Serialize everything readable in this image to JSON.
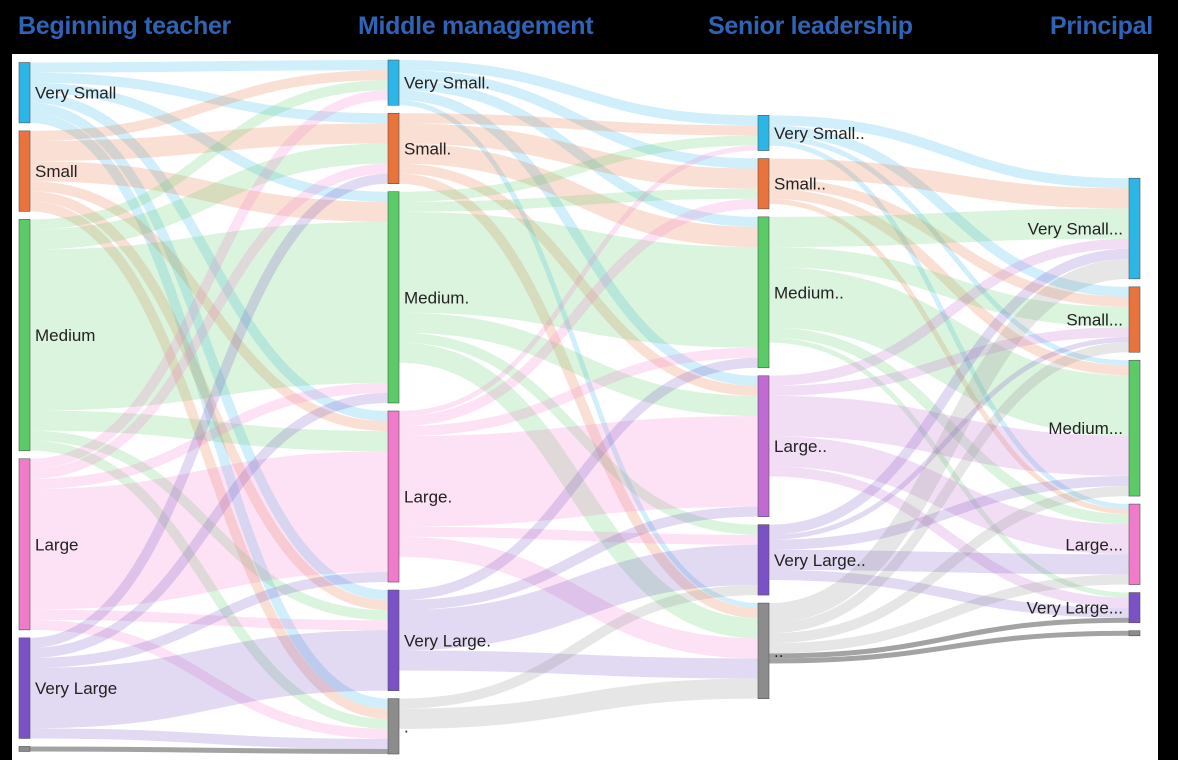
{
  "stages": [
    {
      "key": "beginning",
      "title": "Beginning teacher"
    },
    {
      "key": "middle",
      "title": "Middle management"
    },
    {
      "key": "senior",
      "title": "Senior leadership"
    },
    {
      "key": "principal",
      "title": "Principal"
    }
  ],
  "colors": {
    "very_small": "#2BB6E8",
    "small": "#E8743B",
    "medium": "#5BCB67",
    "large": "#F07BCB",
    "large_senior": "#C06BD3",
    "very_large": "#7B52C6",
    "unknown": "#8C8C8C",
    "title": "#2E63B5"
  },
  "nodes": [
    {
      "id": "b_vs",
      "stage": 0,
      "label": "Very Small",
      "cat": "very_small"
    },
    {
      "id": "b_s",
      "stage": 0,
      "label": "Small",
      "cat": "small"
    },
    {
      "id": "b_m",
      "stage": 0,
      "label": "Medium",
      "cat": "medium"
    },
    {
      "id": "b_l",
      "stage": 0,
      "label": "Large",
      "cat": "large"
    },
    {
      "id": "b_vl",
      "stage": 0,
      "label": "Very Large",
      "cat": "very_large"
    },
    {
      "id": "b_u",
      "stage": 0,
      "label": "",
      "cat": "unknown"
    },
    {
      "id": "m_vs",
      "stage": 1,
      "label": "Very Small.",
      "cat": "very_small"
    },
    {
      "id": "m_s",
      "stage": 1,
      "label": "Small.",
      "cat": "small"
    },
    {
      "id": "m_m",
      "stage": 1,
      "label": "Medium.",
      "cat": "medium"
    },
    {
      "id": "m_l",
      "stage": 1,
      "label": "Large.",
      "cat": "large"
    },
    {
      "id": "m_vl",
      "stage": 1,
      "label": "Very Large.",
      "cat": "very_large"
    },
    {
      "id": "m_u",
      "stage": 1,
      "label": ".",
      "cat": "unknown"
    },
    {
      "id": "s_vs",
      "stage": 2,
      "label": "Very Small..",
      "cat": "very_small"
    },
    {
      "id": "s_s",
      "stage": 2,
      "label": "Small..",
      "cat": "small"
    },
    {
      "id": "s_m",
      "stage": 2,
      "label": "Medium..",
      "cat": "medium"
    },
    {
      "id": "s_l",
      "stage": 2,
      "label": "Large..",
      "cat": "large_senior"
    },
    {
      "id": "s_vl",
      "stage": 2,
      "label": "Very Large..",
      "cat": "very_large"
    },
    {
      "id": "s_u",
      "stage": 2,
      "label": "..",
      "cat": "unknown"
    },
    {
      "id": "p_vs",
      "stage": 3,
      "label": "Very Small...",
      "cat": "very_small"
    },
    {
      "id": "p_s",
      "stage": 3,
      "label": "Small...",
      "cat": "small"
    },
    {
      "id": "p_m",
      "stage": 3,
      "label": "Medium...",
      "cat": "medium"
    },
    {
      "id": "p_l",
      "stage": 3,
      "label": "Large...",
      "cat": "large"
    },
    {
      "id": "p_vl",
      "stage": 3,
      "label": "Very Large...",
      "cat": "very_large"
    },
    {
      "id": "p_u",
      "stage": 3,
      "label": "",
      "cat": "unknown"
    }
  ],
  "links": [
    {
      "source": "b_vs",
      "target": "m_vs",
      "value": 1
    },
    {
      "source": "b_vs",
      "target": "m_s",
      "value": 1
    },
    {
      "source": "b_vs",
      "target": "m_m",
      "value": 1
    },
    {
      "source": "b_vs",
      "target": "m_l",
      "value": 1
    },
    {
      "source": "b_vs",
      "target": "m_vl",
      "value": 1
    },
    {
      "source": "b_vs",
      "target": "m_u",
      "value": 1
    },
    {
      "source": "b_s",
      "target": "m_vs",
      "value": 1
    },
    {
      "source": "b_s",
      "target": "m_s",
      "value": 2
    },
    {
      "source": "b_s",
      "target": "m_m",
      "value": 2
    },
    {
      "source": "b_s",
      "target": "m_l",
      "value": 1
    },
    {
      "source": "b_s",
      "target": "m_vl",
      "value": 1
    },
    {
      "source": "b_s",
      "target": "m_u",
      "value": 1
    },
    {
      "source": "b_m",
      "target": "m_vs",
      "value": 1
    },
    {
      "source": "b_m",
      "target": "m_s",
      "value": 2
    },
    {
      "source": "b_m",
      "target": "m_m",
      "value": 16
    },
    {
      "source": "b_m",
      "target": "m_l",
      "value": 2
    },
    {
      "source": "b_m",
      "target": "m_vl",
      "value": 1
    },
    {
      "source": "b_m",
      "target": "m_u",
      "value": 1
    },
    {
      "source": "b_l",
      "target": "m_vs",
      "value": 1
    },
    {
      "source": "b_l",
      "target": "m_s",
      "value": 1
    },
    {
      "source": "b_l",
      "target": "m_m",
      "value": 1
    },
    {
      "source": "b_l",
      "target": "m_l",
      "value": 12
    },
    {
      "source": "b_l",
      "target": "m_vl",
      "value": 1
    },
    {
      "source": "b_l",
      "target": "m_u",
      "value": 1
    },
    {
      "source": "b_vl",
      "target": "m_s",
      "value": 1
    },
    {
      "source": "b_vl",
      "target": "m_m",
      "value": 1
    },
    {
      "source": "b_vl",
      "target": "m_l",
      "value": 1
    },
    {
      "source": "b_vl",
      "target": "m_vl",
      "value": 6
    },
    {
      "source": "b_vl",
      "target": "m_u",
      "value": 1
    },
    {
      "source": "b_u",
      "target": "m_u",
      "value": 0.5
    },
    {
      "source": "m_vs",
      "target": "s_vs",
      "value": 1
    },
    {
      "source": "m_vs",
      "target": "s_s",
      "value": 1
    },
    {
      "source": "m_vs",
      "target": "s_m",
      "value": 1
    },
    {
      "source": "m_vs",
      "target": "s_l",
      "value": 1
    },
    {
      "source": "m_vs",
      "target": "s_u",
      "value": 0.5
    },
    {
      "source": "m_s",
      "target": "s_vs",
      "value": 1
    },
    {
      "source": "m_s",
      "target": "s_s",
      "value": 2
    },
    {
      "source": "m_s",
      "target": "s_m",
      "value": 2
    },
    {
      "source": "m_s",
      "target": "s_l",
      "value": 1
    },
    {
      "source": "m_s",
      "target": "s_u",
      "value": 1
    },
    {
      "source": "m_m",
      "target": "s_vs",
      "value": 1
    },
    {
      "source": "m_m",
      "target": "s_s",
      "value": 1
    },
    {
      "source": "m_m",
      "target": "s_m",
      "value": 10
    },
    {
      "source": "m_m",
      "target": "s_l",
      "value": 2
    },
    {
      "source": "m_m",
      "target": "s_vl",
      "value": 1
    },
    {
      "source": "m_m",
      "target": "s_u",
      "value": 2
    },
    {
      "source": "m_l",
      "target": "s_vs",
      "value": 0.5
    },
    {
      "source": "m_l",
      "target": "s_s",
      "value": 1
    },
    {
      "source": "m_l",
      "target": "s_m",
      "value": 1
    },
    {
      "source": "m_l",
      "target": "s_l",
      "value": 9
    },
    {
      "source": "m_l",
      "target": "s_vl",
      "value": 1
    },
    {
      "source": "m_l",
      "target": "s_u",
      "value": 2
    },
    {
      "source": "m_vl",
      "target": "s_m",
      "value": 1
    },
    {
      "source": "m_vl",
      "target": "s_l",
      "value": 1
    },
    {
      "source": "m_vl",
      "target": "s_vl",
      "value": 4
    },
    {
      "source": "m_vl",
      "target": "s_u",
      "value": 2
    },
    {
      "source": "m_u",
      "target": "s_vl",
      "value": 1
    },
    {
      "source": "m_u",
      "target": "s_u",
      "value": 2
    },
    {
      "source": "s_vs",
      "target": "p_vs",
      "value": 1
    },
    {
      "source": "s_vs",
      "target": "p_s",
      "value": 1
    },
    {
      "source": "s_vs",
      "target": "p_m",
      "value": 0.5
    },
    {
      "source": "s_vs",
      "target": "p_l",
      "value": 0.5
    },
    {
      "source": "s_s",
      "target": "p_vs",
      "value": 2
    },
    {
      "source": "s_s",
      "target": "p_s",
      "value": 1
    },
    {
      "source": "s_s",
      "target": "p_m",
      "value": 1
    },
    {
      "source": "s_s",
      "target": "p_l",
      "value": 0.5
    },
    {
      "source": "s_m",
      "target": "p_vs",
      "value": 3
    },
    {
      "source": "s_m",
      "target": "p_s",
      "value": 2
    },
    {
      "source": "s_m",
      "target": "p_m",
      "value": 6
    },
    {
      "source": "s_m",
      "target": "p_l",
      "value": 1
    },
    {
      "source": "s_m",
      "target": "p_vl",
      "value": 0.5
    },
    {
      "source": "s_l",
      "target": "p_vs",
      "value": 1
    },
    {
      "source": "s_l",
      "target": "p_s",
      "value": 1
    },
    {
      "source": "s_l",
      "target": "p_m",
      "value": 4
    },
    {
      "source": "s_l",
      "target": "p_l",
      "value": 3
    },
    {
      "source": "s_l",
      "target": "p_vl",
      "value": 1
    },
    {
      "source": "s_vl",
      "target": "p_vs",
      "value": 1
    },
    {
      "source": "s_vl",
      "target": "p_s",
      "value": 0.5
    },
    {
      "source": "s_vl",
      "target": "p_m",
      "value": 1
    },
    {
      "source": "s_vl",
      "target": "p_l",
      "value": 2
    },
    {
      "source": "s_vl",
      "target": "p_vl",
      "value": 1
    },
    {
      "source": "s_u",
      "target": "p_vs",
      "value": 2
    },
    {
      "source": "s_u",
      "target": "p_s",
      "value": 1
    },
    {
      "source": "s_u",
      "target": "p_m",
      "value": 1
    },
    {
      "source": "s_u",
      "target": "p_l",
      "value": 1
    },
    {
      "source": "s_u",
      "target": "p_vl",
      "value": 0.5
    },
    {
      "source": "s_u",
      "target": "p_u",
      "value": 0.5
    }
  ]
}
